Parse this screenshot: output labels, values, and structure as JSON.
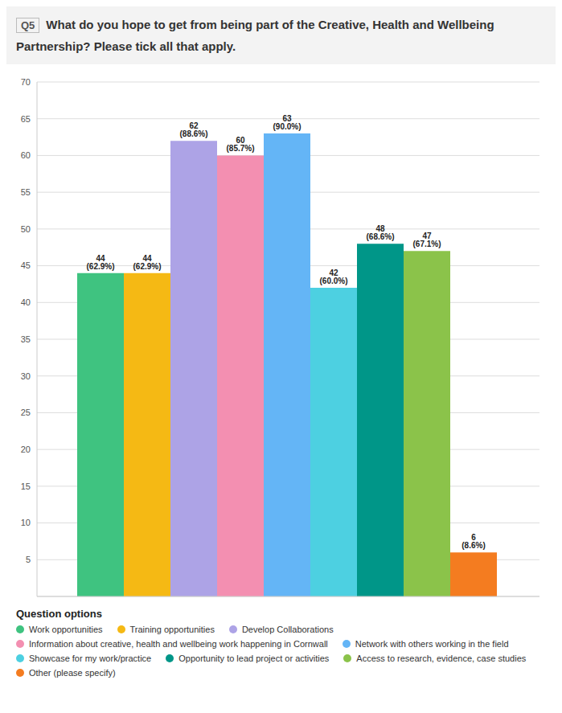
{
  "chart_data": {
    "type": "bar",
    "question_number": "Q5",
    "title": "What do you hope to get from being part of the Creative, Health and Wellbeing Partnership? Please tick all that apply.",
    "categories": [
      null
    ],
    "series": [
      {
        "name": "Work opportunities",
        "color": "#3fc380",
        "values": [
          44
        ],
        "value_labels": [
          "44 (62.9%)"
        ]
      },
      {
        "name": "Training opportunities",
        "color": "#f5b914",
        "values": [
          44
        ],
        "value_labels": [
          "44 (62.9%)"
        ]
      },
      {
        "name": "Develop Collaborations",
        "color": "#ada3e6",
        "values": [
          62
        ],
        "value_labels": [
          "62 (88.6%)"
        ]
      },
      {
        "name": "Information about creative, health and wellbeing work happening in Cornwall",
        "color": "#f38fb1",
        "values": [
          60
        ],
        "value_labels": [
          "60 (85.7%)"
        ]
      },
      {
        "name": "Network with others working in the field",
        "color": "#64b5f6",
        "values": [
          63
        ],
        "value_labels": [
          "63 (90.0%)"
        ]
      },
      {
        "name": "Showcase for my work/practice",
        "color": "#4dd0e1",
        "values": [
          42
        ],
        "value_labels": [
          "42 (60.0%)"
        ]
      },
      {
        "name": "Opportunity to lead project or activities",
        "color": "#009688",
        "values": [
          48
        ],
        "value_labels": [
          "48 (68.6%)"
        ]
      },
      {
        "name": "Access to research, evidence, case studies",
        "color": "#8bc34a",
        "values": [
          47
        ],
        "value_labels": [
          "47 (67.1%)"
        ]
      },
      {
        "name": "Other (please specify)",
        "color": "#f47c20",
        "values": [
          6
        ],
        "value_labels": [
          "6 (8.6%)"
        ]
      }
    ],
    "ylim": [
      0,
      70
    ],
    "yticks": [
      5,
      10,
      15,
      20,
      25,
      30,
      35,
      40,
      45,
      50,
      55,
      60,
      65,
      70
    ],
    "grid": true,
    "data_labels": true,
    "legend": "bottom",
    "legend_title": "Question options",
    "tick_labels": "y"
  }
}
